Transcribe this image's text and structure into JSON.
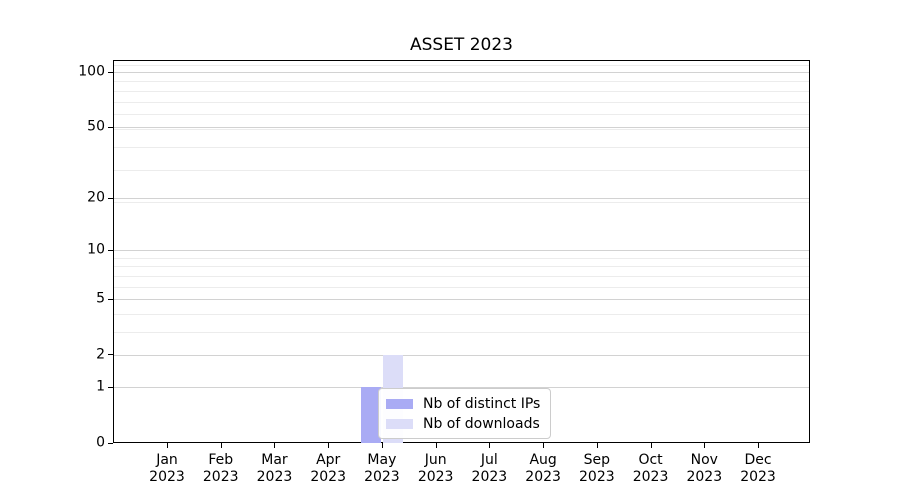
{
  "chart_data": {
    "type": "bar",
    "title": "ASSET 2023",
    "x_categories": [
      "Jan 2023",
      "Feb 2023",
      "Mar 2023",
      "Apr 2023",
      "May 2023",
      "Jun 2023",
      "Jul 2023",
      "Aug 2023",
      "Sep 2023",
      "Oct 2023",
      "Nov 2023",
      "Dec 2023"
    ],
    "series": [
      {
        "name": "Nb of distinct IPs",
        "color": "#a9abf4",
        "values": [
          0,
          0,
          0,
          0,
          1,
          0,
          0,
          0,
          0,
          0,
          0,
          0
        ]
      },
      {
        "name": "Nb of downloads",
        "color": "#dcddf8",
        "values": [
          0,
          0,
          0,
          0,
          2,
          0,
          0,
          0,
          0,
          0,
          0,
          0
        ]
      }
    ],
    "yticks": [
      100,
      50,
      20,
      10,
      5,
      2,
      1,
      0
    ],
    "yscale": "log10(1+value)",
    "ylim": [
      0,
      116
    ],
    "grid": "horizontal major+minor",
    "legend": {
      "position": "inside-lower-center",
      "labels": [
        "Nb of distinct IPs",
        "Nb of downloads"
      ]
    },
    "colors": {
      "background": "#ffffff",
      "axis": "#000000",
      "text": "#000000",
      "grid_major": "#d2d2d2",
      "grid_minor": "#ececec",
      "legend_border": "#cccccc"
    }
  }
}
